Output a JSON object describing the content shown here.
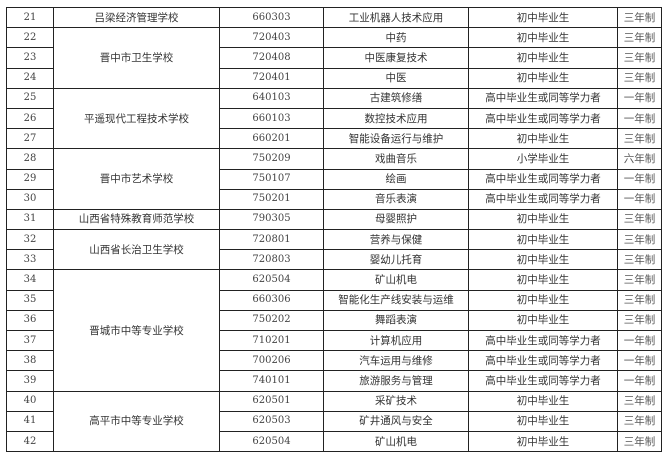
{
  "table": {
    "groups": [
      {
        "school": "吕梁经济管理学校",
        "rows": [
          {
            "no": "21",
            "code": "660303",
            "major": "工业机器人技术应用",
            "requirement": "初中毕业生",
            "duration": "三年制"
          }
        ]
      },
      {
        "school": "晋中市卫生学校",
        "rows": [
          {
            "no": "22",
            "code": "720403",
            "major": "中药",
            "requirement": "初中毕业生",
            "duration": "三年制"
          },
          {
            "no": "23",
            "code": "720408",
            "major": "中医康复技术",
            "requirement": "初中毕业生",
            "duration": "三年制"
          },
          {
            "no": "24",
            "code": "720401",
            "major": "中医",
            "requirement": "初中毕业生",
            "duration": "三年制"
          }
        ]
      },
      {
        "school": "平遥现代工程技术学校",
        "rows": [
          {
            "no": "25",
            "code": "640103",
            "major": "古建筑修缮",
            "requirement": "高中毕业生或同等学力者",
            "duration": "一年制"
          },
          {
            "no": "26",
            "code": "660103",
            "major": "数控技术应用",
            "requirement": "高中毕业生或同等学力者",
            "duration": "一年制"
          },
          {
            "no": "27",
            "code": "660201",
            "major": "智能设备运行与维护",
            "requirement": "初中毕业生",
            "duration": "三年制"
          }
        ]
      },
      {
        "school": "晋中市艺术学校",
        "rows": [
          {
            "no": "28",
            "code": "750209",
            "major": "戏曲音乐",
            "requirement": "小学毕业生",
            "duration": "六年制"
          },
          {
            "no": "29",
            "code": "750107",
            "major": "绘画",
            "requirement": "高中毕业生或同等学力者",
            "duration": "一年制"
          },
          {
            "no": "30",
            "code": "750201",
            "major": "音乐表演",
            "requirement": "高中毕业生或同等学力者",
            "duration": "一年制"
          }
        ]
      },
      {
        "school": "山西省特殊教育师范学校",
        "rows": [
          {
            "no": "31",
            "code": "790305",
            "major": "母婴照护",
            "requirement": "初中毕业生",
            "duration": "三年制"
          }
        ]
      },
      {
        "school": "山西省长治卫生学校",
        "rows": [
          {
            "no": "32",
            "code": "720801",
            "major": "营养与保健",
            "requirement": "初中毕业生",
            "duration": "三年制"
          },
          {
            "no": "33",
            "code": "720803",
            "major": "婴幼儿托育",
            "requirement": "初中毕业生",
            "duration": "三年制"
          }
        ]
      },
      {
        "school": "晋城市中等专业学校",
        "rows": [
          {
            "no": "34",
            "code": "620504",
            "major": "矿山机电",
            "requirement": "初中毕业生",
            "duration": "三年制"
          },
          {
            "no": "35",
            "code": "660306",
            "major": "智能化生产线安装与运维",
            "requirement": "初中毕业生",
            "duration": "三年制"
          },
          {
            "no": "36",
            "code": "750202",
            "major": "舞蹈表演",
            "requirement": "初中毕业生",
            "duration": "三年制"
          },
          {
            "no": "37",
            "code": "710201",
            "major": "计算机应用",
            "requirement": "高中毕业生或同等学力者",
            "duration": "一年制"
          },
          {
            "no": "38",
            "code": "700206",
            "major": "汽车运用与维修",
            "requirement": "高中毕业生或同等学力者",
            "duration": "一年制"
          },
          {
            "no": "39",
            "code": "740101",
            "major": "旅游服务与管理",
            "requirement": "高中毕业生或同等学力者",
            "duration": "一年制"
          }
        ]
      },
      {
        "school": "高平市中等专业学校",
        "rows": [
          {
            "no": "40",
            "code": "620501",
            "major": "采矿技术",
            "requirement": "初中毕业生",
            "duration": "三年制"
          },
          {
            "no": "41",
            "code": "620503",
            "major": "矿井通风与安全",
            "requirement": "初中毕业生",
            "duration": "三年制"
          },
          {
            "no": "42",
            "code": "620504",
            "major": "矿山机电",
            "requirement": "初中毕业生",
            "duration": "三年制"
          }
        ]
      }
    ]
  }
}
